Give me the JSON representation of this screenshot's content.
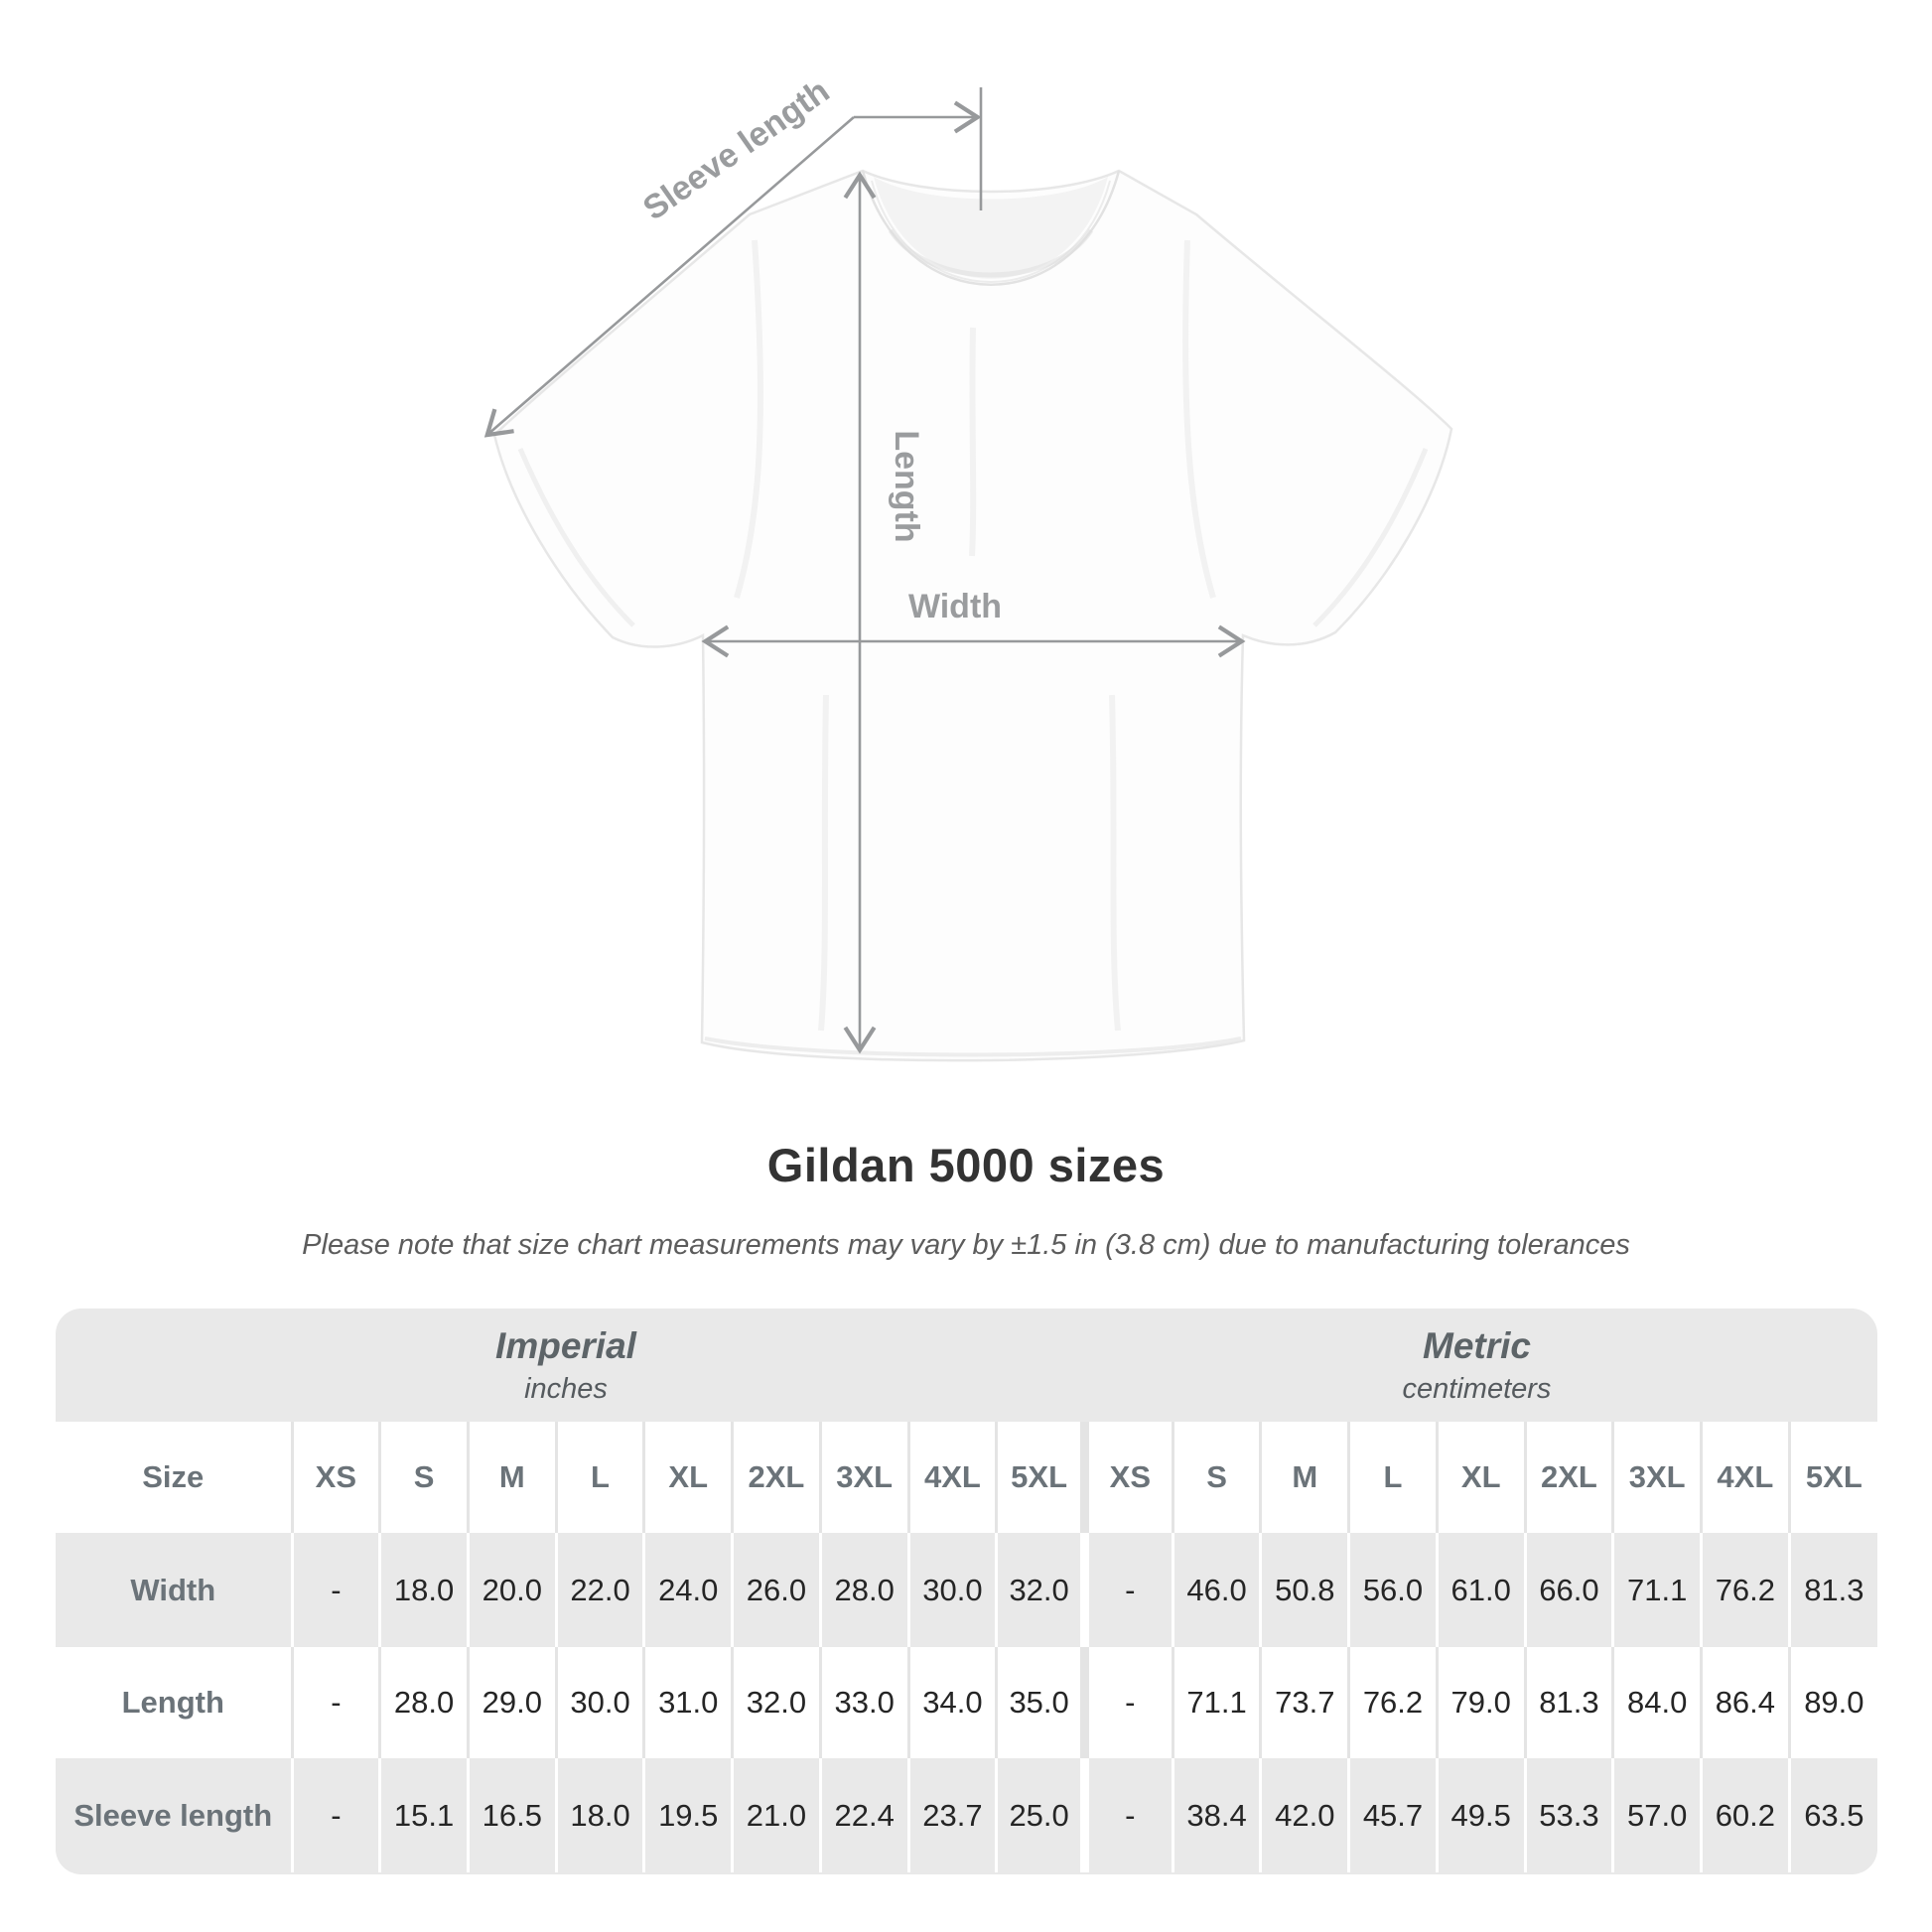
{
  "title": "Gildan 5000 sizes",
  "note": "Please note that size chart measurements may vary by ±1.5 in (3.8 cm) due to manufacturing tolerances",
  "diagram": {
    "sleeve_length_label": "Sleeve length",
    "length_label": "Length",
    "width_label": "Width"
  },
  "table": {
    "size_header": "Size",
    "sections": [
      {
        "name": "Imperial",
        "unit": "inches"
      },
      {
        "name": "Metric",
        "unit": "centimeters"
      }
    ],
    "sizes": [
      "XS",
      "S",
      "M",
      "L",
      "XL",
      "2XL",
      "3XL",
      "4XL",
      "5XL"
    ],
    "rows": [
      {
        "label": "Width",
        "imperial": [
          "-",
          "18.0",
          "20.0",
          "22.0",
          "24.0",
          "26.0",
          "28.0",
          "30.0",
          "32.0"
        ],
        "metric": [
          "-",
          "46.0",
          "50.8",
          "56.0",
          "61.0",
          "66.0",
          "71.1",
          "76.2",
          "81.3"
        ]
      },
      {
        "label": "Length",
        "imperial": [
          "-",
          "28.0",
          "29.0",
          "30.0",
          "31.0",
          "32.0",
          "33.0",
          "34.0",
          "35.0"
        ],
        "metric": [
          "-",
          "71.1",
          "73.7",
          "76.2",
          "79.0",
          "81.3",
          "84.0",
          "86.4",
          "89.0"
        ]
      },
      {
        "label": "Sleeve length",
        "imperial": [
          "-",
          "15.1",
          "16.5",
          "18.0",
          "19.5",
          "21.0",
          "22.4",
          "23.7",
          "25.0"
        ],
        "metric": [
          "-",
          "38.4",
          "42.0",
          "45.7",
          "49.5",
          "53.3",
          "57.0",
          "60.2",
          "63.5"
        ]
      }
    ]
  },
  "colors": {
    "annotation_gray": "#97999b",
    "label_gray": "#9a9c9e",
    "title_dark": "#333333",
    "note_gray": "#5c5c5c",
    "table_band_gray": "#e9e9e9",
    "header_text_gray": "#6b7379",
    "cell_text_dark": "#252525",
    "separator_light": "#e4e4e4"
  }
}
